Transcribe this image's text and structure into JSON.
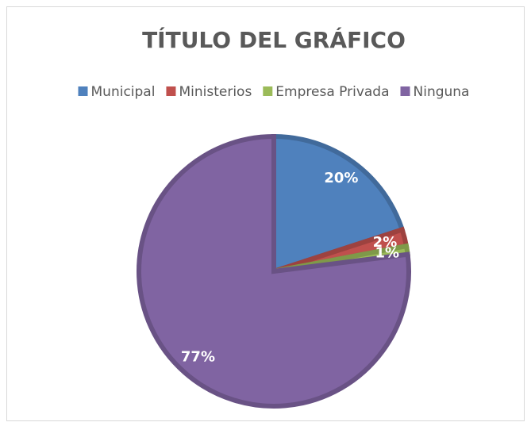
{
  "chart_data": {
    "type": "pie",
    "title": "TÍTULO DEL GRÁFICO",
    "categories": [
      "Municipal",
      "Ministerios",
      "Empresa Privada",
      "Ninguna"
    ],
    "values": [
      20,
      2,
      1,
      77
    ],
    "value_labels": [
      "20%",
      "2%",
      "1%",
      "77%"
    ],
    "colors": [
      "#4f81bd",
      "#c0504d",
      "#9bbb59",
      "#8064a2"
    ],
    "legend": "top"
  }
}
